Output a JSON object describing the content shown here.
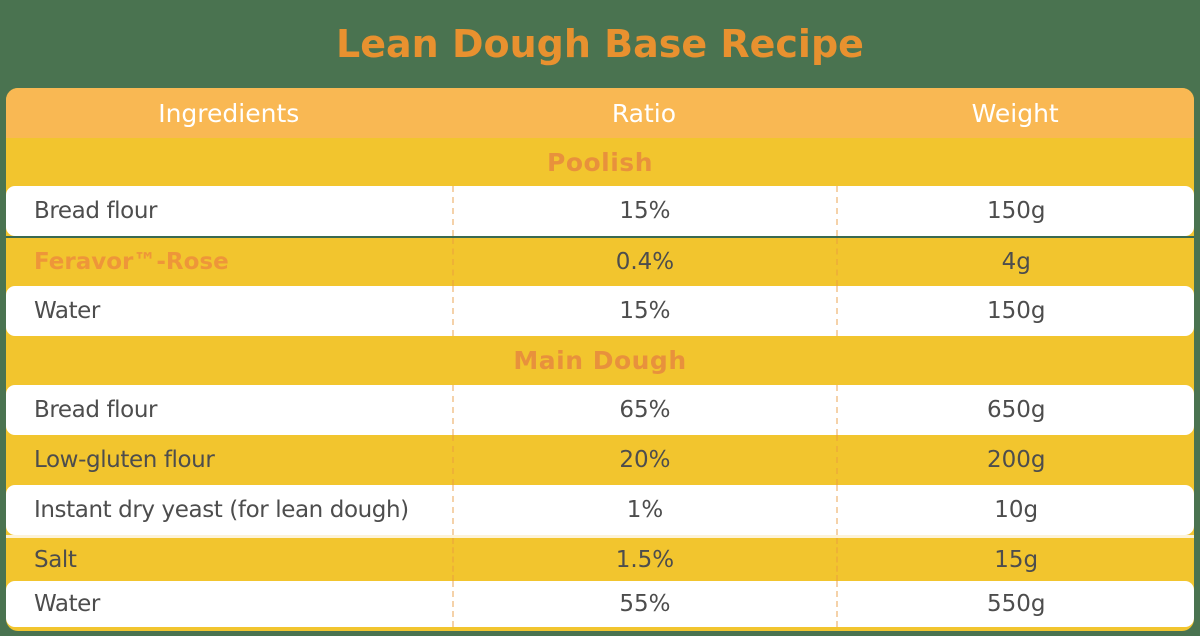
{
  "page": {
    "title": "Lean Dough Base Recipe"
  },
  "colors": {
    "background": "#4A7350",
    "title": "#E8912F",
    "header_bg": "#F9B853",
    "header_text": "#FFFFFF",
    "zebra_yellow": "#F2C52E",
    "row_white": "#FFFFFF",
    "text": "#4D4D4D",
    "section_text": "#E8913C",
    "brand_text": "#EE9639",
    "seam_line": "#3A6A50",
    "seam_gap": "#FDF3D8"
  },
  "table": {
    "columns": [
      "Ingredients",
      "Ratio",
      "Weight"
    ],
    "sections": [
      {
        "name": "Poolish",
        "rows": [
          {
            "ingredient": "Bread flour",
            "ratio": "15%",
            "weight": "150g",
            "bg": "white"
          },
          {
            "ingredient": "Feravor™-Rose",
            "ratio": "0.4%",
            "weight": "4g",
            "bg": "yellow",
            "brand": true,
            "seam_top": "dark-line"
          },
          {
            "ingredient": "Water",
            "ratio": "15%",
            "weight": "150g",
            "bg": "white"
          }
        ]
      },
      {
        "name": "Main Dough",
        "rows": [
          {
            "ingredient": "Bread flour",
            "ratio": "65%",
            "weight": "650g",
            "bg": "white"
          },
          {
            "ingredient": "Low-gluten flour",
            "ratio": "20%",
            "weight": "200g",
            "bg": "yellow"
          },
          {
            "ingredient": "Instant dry yeast (for lean dough)",
            "ratio": "1%",
            "weight": "10g",
            "bg": "white"
          },
          {
            "ingredient": "Salt",
            "ratio": "1.5%",
            "weight": "15g",
            "bg": "yellow",
            "seam_top": "cream-gap"
          },
          {
            "ingredient": "Water",
            "ratio": "55%",
            "weight": "550g",
            "bg": "white"
          }
        ]
      }
    ]
  }
}
